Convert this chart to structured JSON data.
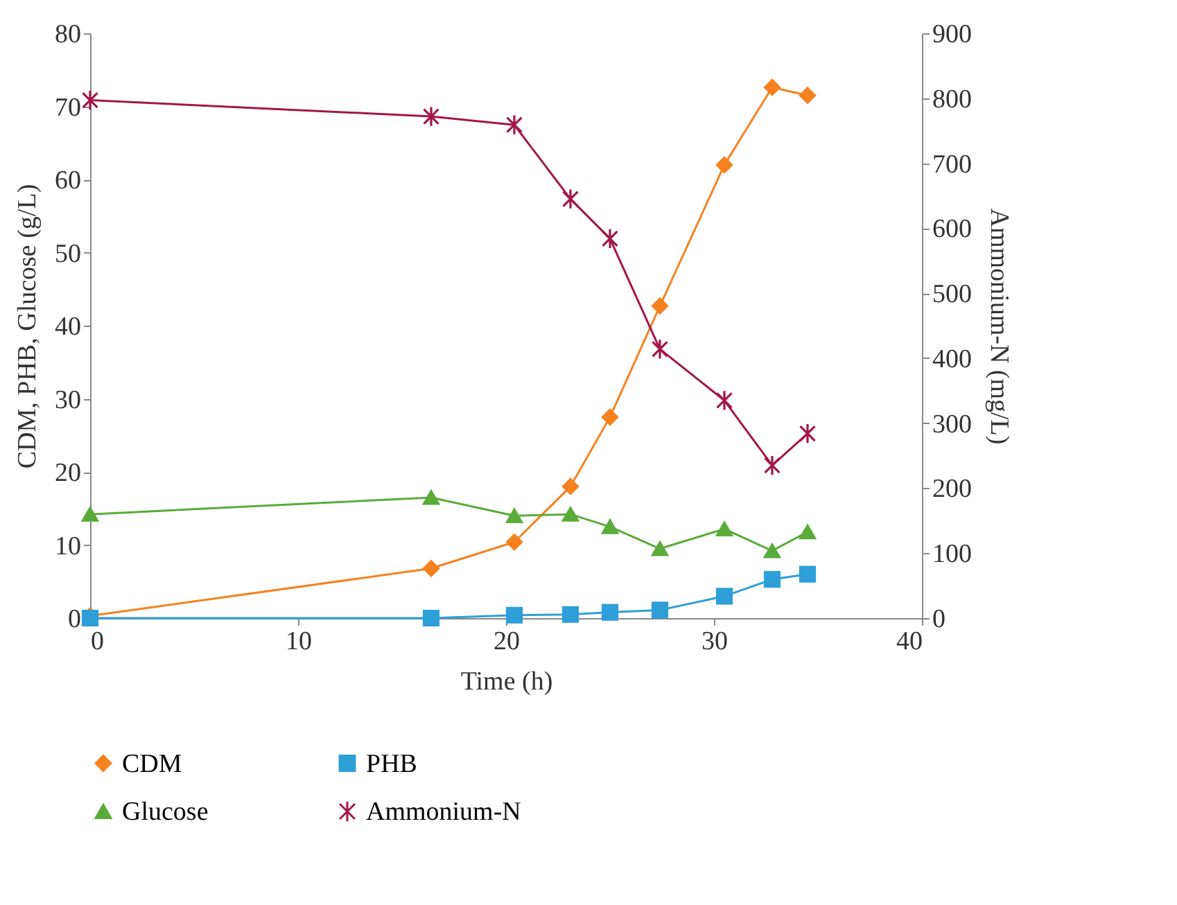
{
  "chart_data": {
    "type": "line",
    "xlabel": "Time (h)",
    "ylabel": "CDM, PHB, Glucose (g/L)",
    "y2label": "Ammonium-N  (mg/L)",
    "x": [
      0,
      16.4,
      20.4,
      23.1,
      25,
      27.4,
      30.5,
      32.8,
      34.5
    ],
    "series": [
      {
        "name": "CDM",
        "color": "#f5821f",
        "marker": "diamond",
        "values": [
          0.3,
          6.8,
          10.4,
          18,
          27.5,
          42.7,
          62,
          72.6,
          71.5
        ]
      },
      {
        "name": "PHB",
        "color": "#2e9fd8",
        "marker": "square",
        "values": [
          0,
          0,
          0.4,
          0.5,
          0.8,
          1.1,
          3,
          5.3,
          6
        ]
      },
      {
        "name": "Glucose",
        "color": "#5aab3a",
        "marker": "triangle",
        "values": [
          14.2,
          16.5,
          14,
          14.2,
          12.5,
          9.5,
          12.2,
          9.2,
          11.8
        ]
      },
      {
        "name": "Ammonium-N",
        "color": "#a3154a",
        "marker": "cross",
        "axis": "y2",
        "values": [
          797,
          772,
          759,
          645,
          584,
          414,
          335,
          235,
          284
        ]
      }
    ],
    "xlim": [
      0,
      40
    ],
    "xticks": [
      0,
      10,
      20,
      30,
      40
    ],
    "ylim": [
      0,
      80
    ],
    "yticks": [
      0,
      10,
      20,
      30,
      40,
      50,
      60,
      70,
      80
    ],
    "y2lim": [
      0,
      900
    ],
    "y2ticks": [
      0,
      100,
      200,
      300,
      400,
      500,
      600,
      700,
      800,
      900
    ],
    "grid": false,
    "legend": "bottom",
    "line_style": "solid"
  }
}
